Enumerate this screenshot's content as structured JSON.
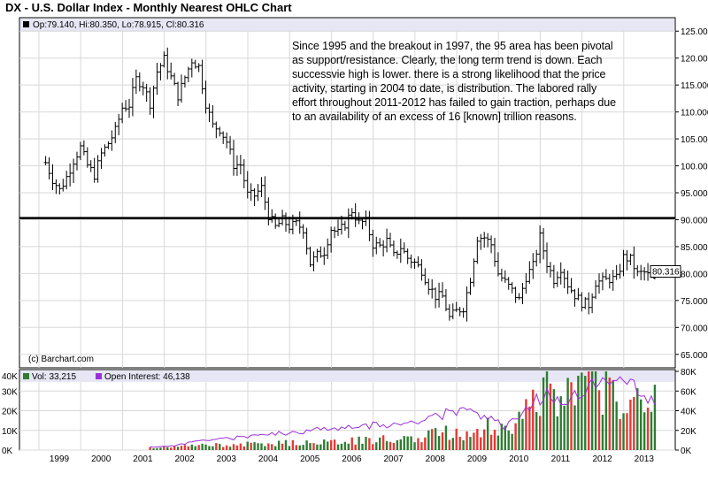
{
  "header": {
    "title": "DX - U.S. Dollar Index - Monthly Nearest OHLC Chart",
    "ohlc_readout": "Op:79.140, Hi:80.350, Lo:78.915, Cl:80.316",
    "last_price_badge": "80.316",
    "credit": "(c) Barchart.com"
  },
  "annotation": "Since 1995 and the breakout in 1997, the 95 area has been pivotal\nas support/resistance.  Clearly, the long term trend is down.  Each\nsuccessvie high is lower.  there is a strong likelihood that the price\nactivity, starting in 2004 to date, is distribution.  The labored rally\neffort throughout 2011-2012 has failed to gain traction, perhaps due\nto an availability of  an excess of 16 [known] trillion reasons.",
  "volume_panel": {
    "vol_legend": "Vol: 33,215",
    "oi_legend": "Open Interest: 46,138",
    "top_left_label": "40K",
    "left_ticks": [
      "30K",
      "20K",
      "10K",
      "0K"
    ],
    "right_ticks": [
      "80K",
      "60K",
      "40K",
      "20K",
      "0K"
    ]
  },
  "colors": {
    "up_volume": "#2e7d32",
    "down_volume": "#e53935",
    "open_interest": "#9b30d9",
    "price_bars": "#000000",
    "header_band": "#e6e6f5",
    "support_line": "#000000"
  },
  "chart_data": [
    {
      "type": "ohlc",
      "title": "DX - U.S. Dollar Index - Monthly Nearest OHLC Chart",
      "ylim": [
        62.5,
        127.5
      ],
      "y_ticks": [
        "125.000",
        "120.000",
        "115.000",
        "110.000",
        "105.000",
        "100.000",
        "95.000",
        "90.000",
        "85.000",
        "80.000",
        "75.000",
        "70.000",
        "65.000"
      ],
      "x_ticks": [
        "1999",
        "2000",
        "2001",
        "2002",
        "2003",
        "2004",
        "2005",
        "2006",
        "2007",
        "2008",
        "2009",
        "2010",
        "2011",
        "2012",
        "2013"
      ],
      "horizontal_line": 90.3,
      "last_bar": {
        "open": 79.14,
        "high": 80.35,
        "low": 78.915,
        "close": 80.316
      },
      "grid": true,
      "series": [
        {
          "points": [
            {
              "x": "1998-07",
              "close": 100.6
            },
            {
              "x": "1998-09",
              "close": 97.5
            },
            {
              "x": "1998-11",
              "close": 95.5
            },
            {
              "x": "1999-01",
              "close": 97.9
            },
            {
              "x": "1999-03",
              "close": 101.0
            },
            {
              "x": "1999-05",
              "close": 103.4
            },
            {
              "x": "1999-07",
              "close": 100.1
            },
            {
              "x": "1999-09",
              "close": 98.3
            },
            {
              "x": "1999-11",
              "close": 102.2
            },
            {
              "x": "2000-01",
              "close": 104.2
            },
            {
              "x": "2000-03",
              "close": 106.5
            },
            {
              "x": "2000-05",
              "close": 110.8
            },
            {
              "x": "2000-07",
              "close": 111.3
            },
            {
              "x": "2000-09",
              "close": 116.1
            },
            {
              "x": "2000-11",
              "close": 115.0
            },
            {
              "x": "2001-01",
              "close": 111.6
            },
            {
              "x": "2001-03",
              "close": 117.5
            },
            {
              "x": "2001-05",
              "close": 119.8
            },
            {
              "x": "2001-07",
              "close": 116.4
            },
            {
              "x": "2001-09",
              "close": 113.0
            },
            {
              "x": "2001-11",
              "close": 116.4
            },
            {
              "x": "2002-01",
              "close": 119.6
            },
            {
              "x": "2002-03",
              "close": 118.4
            },
            {
              "x": "2002-05",
              "close": 111.6
            },
            {
              "x": "2002-07",
              "close": 107.4
            },
            {
              "x": "2002-09",
              "close": 106.8
            },
            {
              "x": "2002-11",
              "close": 104.5
            },
            {
              "x": "2003-01",
              "close": 100.2
            },
            {
              "x": "2003-03",
              "close": 100.2
            },
            {
              "x": "2003-05",
              "close": 94.6
            },
            {
              "x": "2003-07",
              "close": 94.5
            },
            {
              "x": "2003-09",
              "close": 95.9
            },
            {
              "x": "2003-11",
              "close": 90.8
            },
            {
              "x": "2004-01",
              "close": 88.6
            },
            {
              "x": "2004-03",
              "close": 89.9
            },
            {
              "x": "2004-05",
              "close": 88.7
            },
            {
              "x": "2004-07",
              "close": 89.2
            },
            {
              "x": "2004-09",
              "close": 88.3
            },
            {
              "x": "2004-11",
              "close": 81.9
            },
            {
              "x": "2005-01",
              "close": 83.4
            },
            {
              "x": "2005-03",
              "close": 84.1
            },
            {
              "x": "2005-05",
              "close": 88.3
            },
            {
              "x": "2005-07",
              "close": 87.5
            },
            {
              "x": "2005-09",
              "close": 89.2
            },
            {
              "x": "2005-11",
              "close": 91.7
            },
            {
              "x": "2006-01",
              "close": 89.4
            },
            {
              "x": "2006-03",
              "close": 89.6
            },
            {
              "x": "2006-05",
              "close": 85.4
            },
            {
              "x": "2006-07",
              "close": 85.1
            },
            {
              "x": "2006-09",
              "close": 86.1
            },
            {
              "x": "2006-11",
              "close": 83.2
            },
            {
              "x": "2007-01",
              "close": 84.9
            },
            {
              "x": "2007-03",
              "close": 82.9
            },
            {
              "x": "2007-05",
              "close": 82.0
            },
            {
              "x": "2007-07",
              "close": 80.6
            },
            {
              "x": "2007-09",
              "close": 77.8
            },
            {
              "x": "2007-11",
              "close": 75.8
            },
            {
              "x": "2008-01",
              "close": 75.7
            },
            {
              "x": "2008-03",
              "close": 71.8
            },
            {
              "x": "2008-05",
              "close": 73.0
            },
            {
              "x": "2008-07",
              "close": 73.7
            },
            {
              "x": "2008-09",
              "close": 79.1
            },
            {
              "x": "2008-11",
              "close": 86.7
            },
            {
              "x": "2009-01",
              "close": 86.7
            },
            {
              "x": "2009-03",
              "close": 85.4
            },
            {
              "x": "2009-05",
              "close": 80.0
            },
            {
              "x": "2009-07",
              "close": 78.4
            },
            {
              "x": "2009-09",
              "close": 76.8
            },
            {
              "x": "2009-11",
              "close": 75.1
            },
            {
              "x": "2010-01",
              "close": 79.4
            },
            {
              "x": "2010-03",
              "close": 81.4
            },
            {
              "x": "2010-05",
              "close": 86.8
            },
            {
              "x": "2010-07",
              "close": 81.9
            },
            {
              "x": "2010-09",
              "close": 78.9
            },
            {
              "x": "2010-11",
              "close": 81.1
            },
            {
              "x": "2011-01",
              "close": 78.0
            },
            {
              "x": "2011-03",
              "close": 76.0
            },
            {
              "x": "2011-05",
              "close": 74.6
            },
            {
              "x": "2011-07",
              "close": 74.2
            },
            {
              "x": "2011-09",
              "close": 78.4
            },
            {
              "x": "2011-11",
              "close": 78.6
            },
            {
              "x": "2012-01",
              "close": 79.0
            },
            {
              "x": "2012-03",
              "close": 79.0
            },
            {
              "x": "2012-05",
              "close": 83.0
            },
            {
              "x": "2012-07",
              "close": 82.6
            },
            {
              "x": "2012-09",
              "close": 79.9
            },
            {
              "x": "2012-11",
              "close": 80.2
            },
            {
              "x": "2013-01",
              "close": 79.2
            },
            {
              "x": "2013-02",
              "close": 80.316
            }
          ]
        }
      ]
    },
    {
      "type": "bar",
      "title": "",
      "ylim_left": [
        0,
        40000
      ],
      "ylim_right": [
        0,
        80000
      ],
      "series": [
        {
          "name": "Vol: 33,215",
          "axis": "left"
        },
        {
          "name": "Open Interest: 46,138",
          "axis": "right"
        }
      ],
      "points": [
        {
          "x": "2001-01",
          "vol": 1300,
          "oi": 3000
        },
        {
          "x": "2001-07",
          "vol": 1600,
          "oi": 4000
        },
        {
          "x": "2002-01",
          "vol": 2200,
          "oi": 8000
        },
        {
          "x": "2002-07",
          "vol": 2600,
          "oi": 11000
        },
        {
          "x": "2003-01",
          "vol": 2800,
          "oi": 12000
        },
        {
          "x": "2003-07",
          "vol": 3000,
          "oi": 15000
        },
        {
          "x": "2004-01",
          "vol": 3400,
          "oi": 17000
        },
        {
          "x": "2004-07",
          "vol": 3700,
          "oi": 18000
        },
        {
          "x": "2005-01",
          "vol": 4000,
          "oi": 21000
        },
        {
          "x": "2005-07",
          "vol": 4400,
          "oi": 23000
        },
        {
          "x": "2006-01",
          "vol": 4800,
          "oi": 25000
        },
        {
          "x": "2006-07",
          "vol": 5200,
          "oi": 25000
        },
        {
          "x": "2007-01",
          "vol": 5800,
          "oi": 27000
        },
        {
          "x": "2007-07",
          "vol": 6800,
          "oi": 32000
        },
        {
          "x": "2008-01",
          "vol": 8500,
          "oi": 36000
        },
        {
          "x": "2008-07",
          "vol": 9000,
          "oi": 40000
        },
        {
          "x": "2009-01",
          "vol": 12000,
          "oi": 36000
        },
        {
          "x": "2009-07",
          "vol": 11000,
          "oi": 24000
        },
        {
          "x": "2010-01",
          "vol": 20000,
          "oi": 44000
        },
        {
          "x": "2010-07",
          "vol": 29000,
          "oi": 56000
        },
        {
          "x": "2011-01",
          "vol": 26000,
          "oi": 50000
        },
        {
          "x": "2011-07",
          "vol": 33000,
          "oi": 68000
        },
        {
          "x": "2012-01",
          "vol": 30000,
          "oi": 64000
        },
        {
          "x": "2012-07",
          "vol": 25000,
          "oi": 68000
        },
        {
          "x": "2013-01",
          "vol": 26000,
          "oi": 52000
        },
        {
          "x": "2013-02",
          "vol": 33215,
          "oi": 46138
        }
      ]
    }
  ]
}
